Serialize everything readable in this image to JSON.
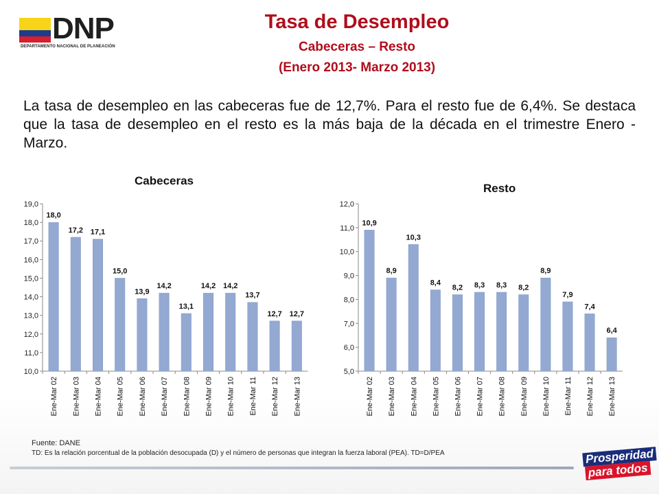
{
  "header": {
    "logo_text": "DNP",
    "logo_subtitle": "DEPARTAMENTO NACIONAL DE PLANEACIÓN",
    "title": "Tasa de Desempleo",
    "subtitle": "Cabeceras – Resto",
    "period": "(Enero 2013- Marzo 2013)"
  },
  "paragraph": "La tasa de desempleo en las cabeceras fue de 12,7%. Para el resto fue de 6,4%. Se destaca que la tasa de desempleo en el resto es la más baja de la década en el trimestre Enero - Marzo.",
  "colors": {
    "bar": "#93a9d2",
    "title": "#b00d1c",
    "flag_yellow": "#f7d417",
    "flag_blue": "#1c3c8c",
    "flag_red": "#d42030"
  },
  "chart_data": [
    {
      "type": "bar",
      "title": "Cabeceras",
      "categories": [
        "Ene-Mar 02",
        "Ene-Mar 03",
        "Ene-Mar 04",
        "Ene-Mar 05",
        "Ene-Mar 06",
        "Ene-Mar 07",
        "Ene-Mar 08",
        "Ene-Mar 09",
        "Ene-Mar 10",
        "Ene-Mar 11",
        "Ene-Mar 12",
        "Ene-Mar 13"
      ],
      "values": [
        18.0,
        17.2,
        17.1,
        15.0,
        13.9,
        14.2,
        13.1,
        14.2,
        14.2,
        13.7,
        12.7,
        12.7
      ],
      "value_labels": [
        "18,0",
        "17,2",
        "17,1",
        "15,0",
        "13,9",
        "14,2",
        "13,1",
        "14,2",
        "14,2",
        "13,7",
        "12,7",
        "12,7"
      ],
      "ylim": [
        10.0,
        19.0
      ],
      "yticks": [
        "10,0",
        "11,0",
        "12,0",
        "13,0",
        "14,0",
        "15,0",
        "16,0",
        "17,0",
        "18,0",
        "19,0"
      ],
      "ytick_step": 1.0,
      "grid": false
    },
    {
      "type": "bar",
      "title": "Resto",
      "categories": [
        "Ene-Mar 02",
        "Ene-Mar 03",
        "Ene-Mar 04",
        "Ene-Mar 05",
        "Ene-Mar 06",
        "Ene-Mar 07",
        "Ene-Mar 08",
        "Ene-Mar 09",
        "Ene-Mar 10",
        "Ene-Mar 11",
        "Ene-Mar 12",
        "Ene-Mar 13"
      ],
      "values": [
        10.9,
        8.9,
        10.3,
        8.4,
        8.2,
        8.3,
        8.3,
        8.2,
        8.9,
        7.9,
        7.4,
        6.4
      ],
      "value_labels": [
        "10,9",
        "8,9",
        "10,3",
        "8,4",
        "8,2",
        "8,3",
        "8,3",
        "8,2",
        "8,9",
        "7,9",
        "7,4",
        "6,4"
      ],
      "ylim": [
        5.0,
        12.0
      ],
      "yticks": [
        "5,0",
        "6,0",
        "7,0",
        "8,0",
        "9,0",
        "10,0",
        "11,0",
        "12,0"
      ],
      "ytick_step": 1.0,
      "grid": false
    }
  ],
  "footer": {
    "source": "Fuente: DANE",
    "note": "TD: Es la relación porcentual de la población desocupada (D) y el número de personas que integran la fuerza laboral (PEA). TD=D/PEA"
  },
  "brand": {
    "line1": "Prosperidad",
    "line2": "para todos"
  }
}
